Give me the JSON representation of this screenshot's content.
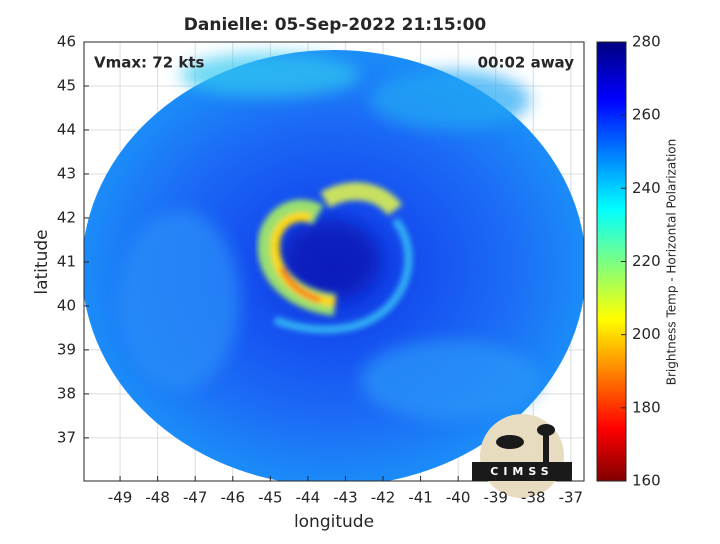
{
  "chart_data": {
    "type": "image",
    "title": "Danielle: 05-Sep-2022 21:15:00",
    "annotations": [
      "Vmax: 72 kts",
      "00:02 away"
    ],
    "xlabel": "longitude",
    "ylabel": "latitude",
    "xlim": [
      -49.96,
      -36.65
    ],
    "xticks": [
      -49,
      -48,
      -47,
      -46,
      -45,
      -44,
      -43,
      -42,
      -41,
      -40,
      -39,
      -38,
      -37
    ],
    "ylim": [
      36.02,
      46
    ],
    "yticks": [
      37,
      38,
      39,
      40,
      41,
      42,
      43,
      44,
      45,
      46
    ],
    "grid": true,
    "colorbar": {
      "label": "Brightness Temp - Horizontal Polarization",
      "lim": [
        160,
        280
      ],
      "ticks": [
        160,
        180,
        200,
        220,
        240,
        260,
        280
      ]
    },
    "logo": "CIMSS"
  }
}
